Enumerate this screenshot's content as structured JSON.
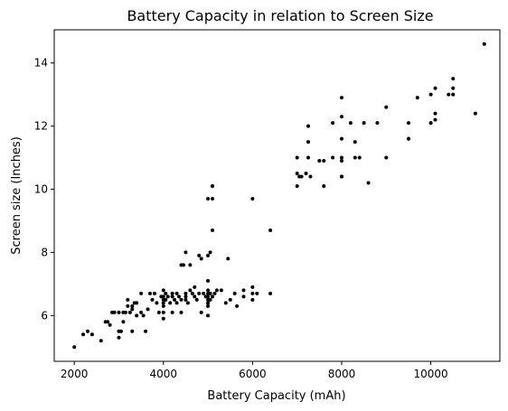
{
  "chart_data": {
    "type": "scatter",
    "title": "Battery Capacity in relation to Screen Size",
    "xlabel": "Battery Capacity (mAh)",
    "ylabel": "Screen size (Inches)",
    "xlim": [
      1550,
      11550
    ],
    "ylim": [
      4.55,
      15.05
    ],
    "xticks": [
      2000,
      4000,
      6000,
      8000,
      10000
    ],
    "yticks": [
      6,
      8,
      10,
      12,
      14
    ],
    "xtick_labels": [
      "2000",
      "4000",
      "6000",
      "8000",
      "10000"
    ],
    "ytick_labels": [
      "6",
      "8",
      "10",
      "12",
      "14"
    ],
    "grid": false,
    "marker_color": "#000000",
    "points": [
      [
        2000,
        5.0
      ],
      [
        2200,
        5.4
      ],
      [
        2300,
        5.5
      ],
      [
        2400,
        5.4
      ],
      [
        2600,
        5.2
      ],
      [
        2700,
        5.8
      ],
      [
        2750,
        5.8
      ],
      [
        2800,
        5.7
      ],
      [
        2850,
        6.1
      ],
      [
        2900,
        6.1
      ],
      [
        3000,
        5.3
      ],
      [
        3000,
        5.5
      ],
      [
        3000,
        6.1
      ],
      [
        3050,
        5.5
      ],
      [
        3100,
        6.1
      ],
      [
        3100,
        5.8
      ],
      [
        3150,
        6.1
      ],
      [
        3200,
        6.3
      ],
      [
        3200,
        6.5
      ],
      [
        3250,
        6.1
      ],
      [
        3300,
        6.3
      ],
      [
        3300,
        6.2
      ],
      [
        3350,
        6.4
      ],
      [
        3300,
        5.5
      ],
      [
        3400,
        6.0
      ],
      [
        3400,
        6.4
      ],
      [
        3500,
        6.1
      ],
      [
        3500,
        6.7
      ],
      [
        3550,
        6.0
      ],
      [
        3600,
        5.5
      ],
      [
        3650,
        6.2
      ],
      [
        3700,
        6.7
      ],
      [
        3750,
        6.5
      ],
      [
        3800,
        6.7
      ],
      [
        3850,
        6.4
      ],
      [
        3900,
        6.1
      ],
      [
        3950,
        6.6
      ],
      [
        4000,
        6.5
      ],
      [
        4000,
        6.4
      ],
      [
        4000,
        6.3
      ],
      [
        4000,
        6.6
      ],
      [
        4000,
        6.1
      ],
      [
        4000,
        5.9
      ],
      [
        4000,
        6.8
      ],
      [
        4050,
        6.5
      ],
      [
        4050,
        6.7
      ],
      [
        4100,
        6.6
      ],
      [
        4150,
        6.4
      ],
      [
        4200,
        6.1
      ],
      [
        4200,
        6.6
      ],
      [
        4200,
        6.7
      ],
      [
        4250,
        6.5
      ],
      [
        4300,
        6.7
      ],
      [
        4300,
        6.4
      ],
      [
        4350,
        6.6
      ],
      [
        4400,
        6.5
      ],
      [
        4400,
        6.1
      ],
      [
        4400,
        7.6
      ],
      [
        4450,
        7.6
      ],
      [
        4500,
        6.7
      ],
      [
        4500,
        6.6
      ],
      [
        4500,
        6.5
      ],
      [
        4500,
        8.0
      ],
      [
        4550,
        6.4
      ],
      [
        4600,
        7.6
      ],
      [
        4600,
        6.8
      ],
      [
        4650,
        6.7
      ],
      [
        4700,
        6.6
      ],
      [
        4700,
        6.9
      ],
      [
        4750,
        6.5
      ],
      [
        4800,
        7.9
      ],
      [
        4800,
        6.7
      ],
      [
        4850,
        6.1
      ],
      [
        4850,
        7.8
      ],
      [
        4900,
        6.7
      ],
      [
        4950,
        6.6
      ],
      [
        5000,
        6.5
      ],
      [
        5000,
        6.6
      ],
      [
        5000,
        6.7
      ],
      [
        5000,
        6.8
      ],
      [
        5000,
        6.4
      ],
      [
        5000,
        6.0
      ],
      [
        5000,
        6.3
      ],
      [
        5000,
        7.1
      ],
      [
        5000,
        7.9
      ],
      [
        5000,
        9.7
      ],
      [
        5050,
        6.7
      ],
      [
        5050,
        6.5
      ],
      [
        5050,
        8.0
      ],
      [
        5100,
        6.6
      ],
      [
        5100,
        10.1
      ],
      [
        5100,
        10.1
      ],
      [
        5100,
        9.7
      ],
      [
        5100,
        8.7
      ],
      [
        5150,
        6.7
      ],
      [
        5200,
        6.8
      ],
      [
        5300,
        6.8
      ],
      [
        5400,
        6.4
      ],
      [
        5450,
        7.8
      ],
      [
        5500,
        6.5
      ],
      [
        5600,
        6.7
      ],
      [
        5650,
        6.3
      ],
      [
        5800,
        6.8
      ],
      [
        5800,
        6.6
      ],
      [
        6000,
        6.7
      ],
      [
        6000,
        6.9
      ],
      [
        6000,
        6.5
      ],
      [
        6000,
        9.7
      ],
      [
        6100,
        6.7
      ],
      [
        6400,
        8.7
      ],
      [
        6400,
        6.7
      ],
      [
        7000,
        10.1
      ],
      [
        7000,
        10.5
      ],
      [
        7000,
        11.0
      ],
      [
        7050,
        10.4
      ],
      [
        7100,
        10.4
      ],
      [
        7200,
        10.5
      ],
      [
        7250,
        11.0
      ],
      [
        7250,
        11.5
      ],
      [
        7250,
        12.0
      ],
      [
        7300,
        10.4
      ],
      [
        7500,
        10.9
      ],
      [
        7600,
        10.9
      ],
      [
        7600,
        10.1
      ],
      [
        7800,
        11.0
      ],
      [
        7800,
        12.1
      ],
      [
        8000,
        12.9
      ],
      [
        8000,
        12.3
      ],
      [
        8000,
        11.6
      ],
      [
        8000,
        10.9
      ],
      [
        8000,
        11.0
      ],
      [
        8000,
        10.4
      ],
      [
        8000,
        10.4
      ],
      [
        8200,
        12.1
      ],
      [
        8300,
        11.5
      ],
      [
        8300,
        11.0
      ],
      [
        8400,
        11.0
      ],
      [
        8500,
        12.1
      ],
      [
        8600,
        10.2
      ],
      [
        8800,
        12.1
      ],
      [
        9000,
        11.0
      ],
      [
        9000,
        12.6
      ],
      [
        9500,
        12.1
      ],
      [
        9500,
        11.6
      ],
      [
        9500,
        11.6
      ],
      [
        9700,
        12.9
      ],
      [
        10000,
        13.0
      ],
      [
        10000,
        12.1
      ],
      [
        10100,
        12.4
      ],
      [
        10100,
        12.2
      ],
      [
        10100,
        13.2
      ],
      [
        10400,
        13.0
      ],
      [
        10500,
        13.2
      ],
      [
        10500,
        13.5
      ],
      [
        10500,
        13.0
      ],
      [
        11000,
        12.4
      ],
      [
        11200,
        14.6
      ]
    ]
  }
}
